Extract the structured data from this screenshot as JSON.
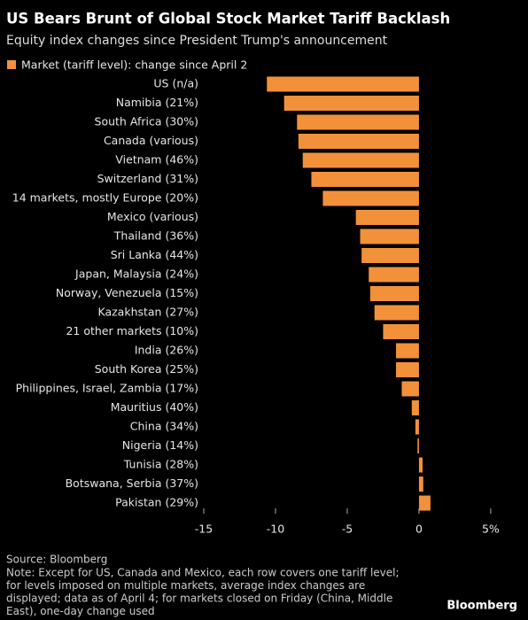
{
  "chart_data": {
    "type": "hbar",
    "title": "US Bears Brunt of Global Stock Market Tariff Backlash",
    "subtitle": "Equity index changes since President Trump's announcement",
    "categories": [
      "US (n/a)",
      "Namibia (21%)",
      "South Africa (30%)",
      "Canada (various)",
      "Vietnam (46%)",
      "Switzerland (31%)",
      "14 markets, mostly Europe (20%)",
      "Mexico (various)",
      "Thailand (36%)",
      "Sri Lanka (44%)",
      "Japan, Malaysia (24%)",
      "Norway, Venezuela (15%)",
      "Kazakhstan (27%)",
      "21 other markets (10%)",
      "India (26%)",
      "South Korea (25%)",
      "Philippines, Israel, Zambia (17%)",
      "Mauritius (40%)",
      "China (34%)",
      "Nigeria (14%)",
      "Tunisia (28%)",
      "Botswana, Serbia (37%)",
      "Pakistan (29%)"
    ],
    "series": [
      {
        "name": "Market (tariff level): change since April 2",
        "color": "#f2913a",
        "values": [
          -10.6,
          -9.4,
          -8.5,
          -8.4,
          -8.1,
          -7.5,
          -6.7,
          -4.4,
          -4.1,
          -4.0,
          -3.5,
          -3.4,
          -3.1,
          -2.5,
          -1.6,
          -1.6,
          -1.2,
          -0.5,
          -0.25,
          -0.1,
          0.25,
          0.3,
          0.8
        ]
      }
    ],
    "xlim": [
      -15,
      5.5
    ],
    "xticks": [
      -15,
      -10,
      -5,
      0,
      {
        "value": 5,
        "label": "5%"
      }
    ],
    "grid": false,
    "legend": "top-left",
    "source": "Source: Bloomberg",
    "note": [
      "Note: Except for US, Canada and Mexico, each row covers one tariff level;",
      "for levels imposed on multiple markets, average index changes are",
      "displayed; data as of April 4; for markets closed on Friday (China, Middle",
      "East), one-day change used"
    ],
    "brand": "Bloomberg"
  }
}
